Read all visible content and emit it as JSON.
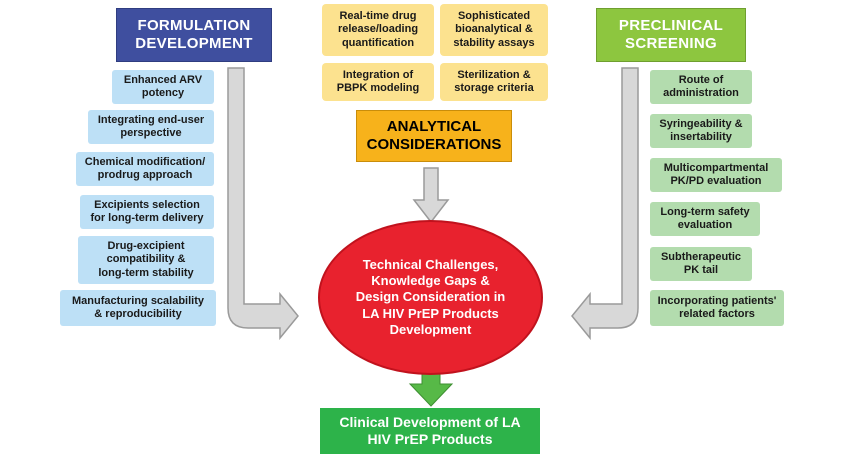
{
  "formulation": {
    "title": "FORMULATION\nDEVELOPMENT",
    "items": [
      "Enhanced ARV\npotency",
      "Integrating end-user\nperspective",
      "Chemical modification/\nprodrug approach",
      "Excipients selection\nfor long-term delivery",
      "Drug-excipient\ncompatibility &\nlong-term stability",
      "Manufacturing scalability\n& reproducibility"
    ]
  },
  "analytical": {
    "title": "ANALYTICAL\nCONSIDERATIONS",
    "items": [
      "Real-time drug\nrelease/loading\nquantification",
      "Sophisticated\nbioanalytical &\nstability assays",
      "Integration of\nPBPK modeling",
      "Sterilization &\nstorage criteria"
    ]
  },
  "preclinical": {
    "title": "PRECLINICAL\nSCREENING",
    "items": [
      "Route of\nadministration",
      "Syringeability &\ninsertability",
      "Multicompartmental\nPK/PD evaluation",
      "Long-term safety\nevaluation",
      "Subtherapeutic\nPK tail",
      "Incorporating patients'\nrelated factors"
    ]
  },
  "center": {
    "text": "Technical Challenges,\nKnowledge Gaps &\nDesign Consideration in\nLA HIV PrEP Products\nDevelopment"
  },
  "clinical": {
    "text": "Clinical Development of LA\nHIV PrEP Products"
  },
  "colors": {
    "formulation_header": "#3f4f9f",
    "preclinical_header": "#8dc63f",
    "analytical_header": "#f7b21b",
    "center_ellipse": "#e8222e",
    "clinical_box": "#2db34a"
  }
}
